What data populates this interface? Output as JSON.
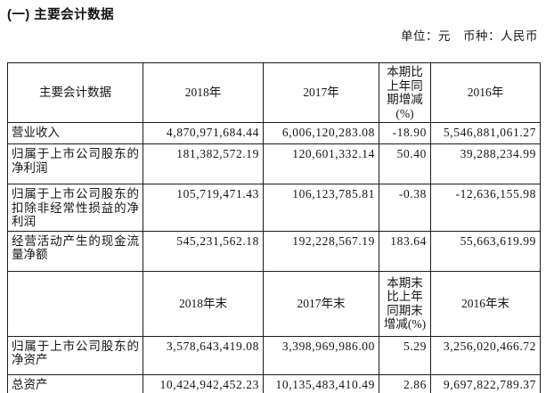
{
  "page": {
    "title": "(一) 主要会计数据",
    "unit_note": "单位：元　币种：人民币"
  },
  "table": {
    "header1": [
      "主要会计数据",
      "2018年",
      "2017年",
      "本期比上年同期增减(%)",
      "2016年"
    ],
    "rows1": [
      {
        "label": "营业收入",
        "v2018": "4,870,971,684.44",
        "v2017": "6,006,120,283.08",
        "change": "-18.90",
        "v2016": "5,546,881,061.27"
      },
      {
        "label": "归属于上市公司股东的净利润",
        "v2018": "181,382,572.19",
        "v2017": "120,601,332.14",
        "change": "50.40",
        "v2016": "39,288,234.99"
      },
      {
        "label": "归属于上市公司股东的扣除非经常性损益的净利润",
        "v2018": "105,719,471.43",
        "v2017": "106,123,785.81",
        "change": "-0.38",
        "v2016": "-12,636,155.98"
      },
      {
        "label": "经营活动产生的现金流量净额",
        "v2018": "545,231,562.18",
        "v2017": "192,228,567.19",
        "change": "183.64",
        "v2016": "55,663,619.99"
      }
    ],
    "header2": [
      "",
      "2018年末",
      "2017年末",
      "本期末比上年同期末增减(%)",
      "2016年末"
    ],
    "rows2": [
      {
        "label": "归属于上市公司股东的净资产",
        "v2018": "3,578,643,419.08",
        "v2017": "3,398,969,986.00",
        "change": "5.29",
        "v2016": "3,256,020,466.72"
      },
      {
        "label": "总资产",
        "v2018": "10,424,942,452.23",
        "v2017": "10,135,483,410.49",
        "change": "2.86",
        "v2016": "9,697,822,789.37"
      }
    ]
  }
}
